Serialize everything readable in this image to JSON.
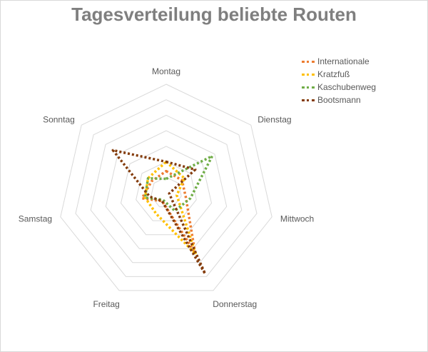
{
  "chart_data": {
    "type": "radar",
    "title": "Tagesverteilung beliebte Routen",
    "categories": [
      "Montag",
      "Dienstag",
      "Mittwoch",
      "Donnerstag",
      "Freitag",
      "Samstag",
      "Sonntag"
    ],
    "rmax": 7,
    "rings": 7,
    "legend_position": "top-right",
    "series": [
      {
        "name": "Internationale",
        "color": "#ED7D31",
        "values": [
          1.4,
          1.3,
          1.3,
          4.3,
          0.6,
          1.6,
          1.2
        ]
      },
      {
        "name": "Kratzfuß",
        "color": "#FFC000",
        "values": [
          2.0,
          1.5,
          0.7,
          4.4,
          1.5,
          1.4,
          1.5
        ]
      },
      {
        "name": "Kaschubenweg",
        "color": "#70AD47",
        "values": [
          0.9,
          3.8,
          1.6,
          1.3,
          0.5,
          1.4,
          1.5
        ]
      },
      {
        "name": "Bootsmann",
        "color": "#843C0C",
        "values": [
          2.0,
          2.4,
          0.2,
          5.8,
          0.6,
          1.1,
          4.4
        ]
      }
    ]
  }
}
